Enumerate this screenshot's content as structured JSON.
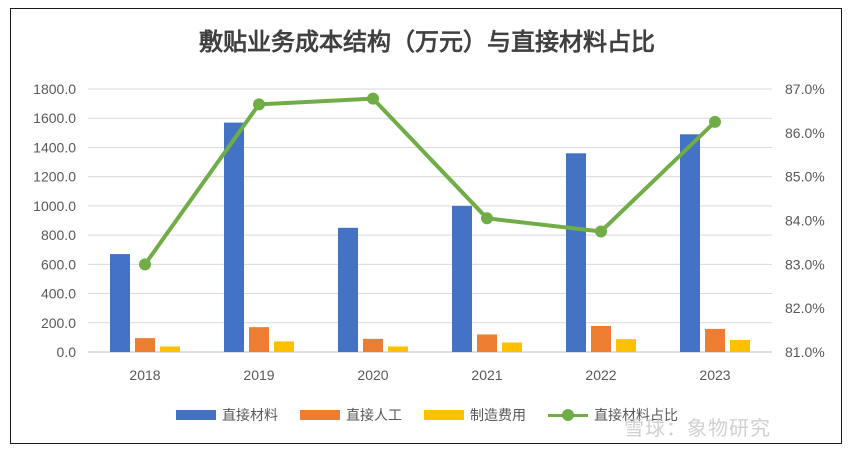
{
  "chart_data": {
    "type": "bar",
    "title": "敷贴业务成本结构（万元）与直接材料占比",
    "categories": [
      "2018",
      "2019",
      "2020",
      "2021",
      "2022",
      "2023"
    ],
    "series": [
      {
        "name": "直接材料",
        "type": "bar",
        "axis": "left",
        "color": "#4472c4",
        "values": [
          670,
          1570,
          850,
          1000,
          1360,
          1490
        ]
      },
      {
        "name": "直接人工",
        "type": "bar",
        "axis": "left",
        "color": "#ed7d31",
        "values": [
          95,
          170,
          90,
          120,
          178,
          158
        ]
      },
      {
        "name": "制造费用",
        "type": "bar",
        "axis": "left",
        "color": "#ffc000",
        "values": [
          38,
          72,
          38,
          65,
          88,
          82
        ]
      },
      {
        "name": "直接材料占比",
        "type": "line",
        "axis": "right",
        "color": "#70ad47",
        "values": [
          83.0,
          86.65,
          86.78,
          84.05,
          83.75,
          86.25
        ]
      }
    ],
    "ylim_left": [
      0,
      1800
    ],
    "ylim_right": [
      81.0,
      87.0
    ],
    "left_ticks": [
      "0.0",
      "200.0",
      "400.0",
      "600.0",
      "800.0",
      "1000.0",
      "1200.0",
      "1400.0",
      "1600.0",
      "1800.0"
    ],
    "right_ticks": [
      "81.0%",
      "82.0%",
      "83.0%",
      "84.0%",
      "85.0%",
      "86.0%",
      "87.0%"
    ],
    "grid": true,
    "legend": "bottom"
  },
  "watermark": "雪球：象物研究"
}
